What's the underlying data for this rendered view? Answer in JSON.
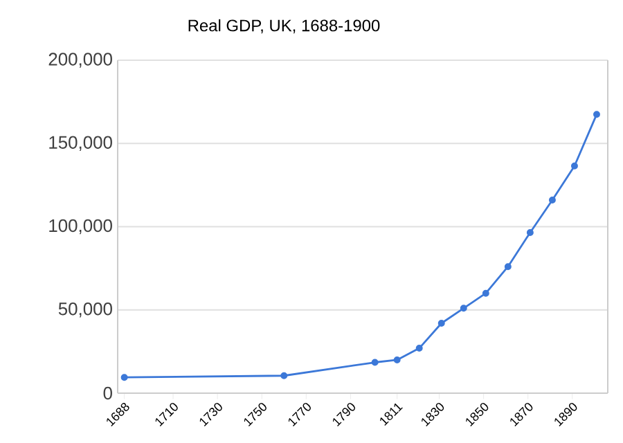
{
  "chart_data": {
    "type": "line",
    "title": "Real GDP, UK, 1688-1900",
    "x": [
      1688,
      1760,
      1801,
      1811,
      1821,
      1831,
      1841,
      1851,
      1861,
      1871,
      1881,
      1891,
      1901
    ],
    "series": [
      {
        "color": "#3c78d8",
        "values": [
          9500,
          10500,
          18500,
          20000,
          27000,
          42000,
          51000,
          60000,
          76000,
          96500,
          116000,
          136500,
          167500
        ]
      }
    ],
    "xlim": [
      1685,
      1906
    ],
    "xticks": [
      1688,
      1710,
      1730,
      1750,
      1770,
      1790,
      1811,
      1830,
      1850,
      1870,
      1890
    ],
    "ylim": [
      0,
      200000
    ],
    "yticks": [
      {
        "value": 0,
        "label": "0"
      },
      {
        "value": 50000,
        "label": "50,000"
      },
      {
        "value": 100000,
        "label": "100,000"
      },
      {
        "value": 150000,
        "label": "150,000"
      },
      {
        "value": 200000,
        "label": "200,000"
      }
    ],
    "grid": "y",
    "marker": "circle",
    "line_style": "solid"
  }
}
